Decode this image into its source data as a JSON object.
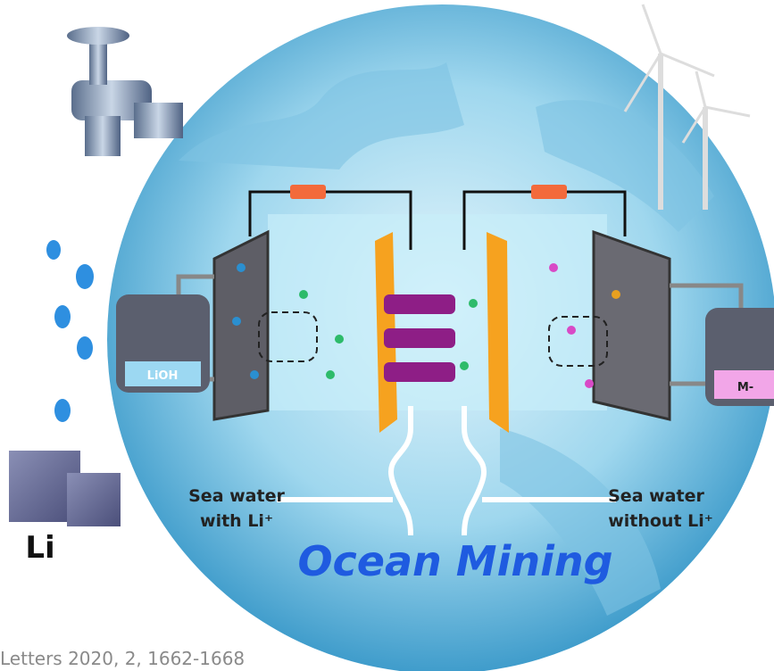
{
  "tank_left": "LiOH",
  "tank_right": "M-",
  "inlet": {
    "line1": "Sea water",
    "line2": "with Li⁺"
  },
  "outlet": {
    "line1": "Sea water",
    "line2": "without Li⁺"
  },
  "element": "Li",
  "title": "Ocean Mining",
  "citation": "Letters 2020, 2, 1662-1668"
}
